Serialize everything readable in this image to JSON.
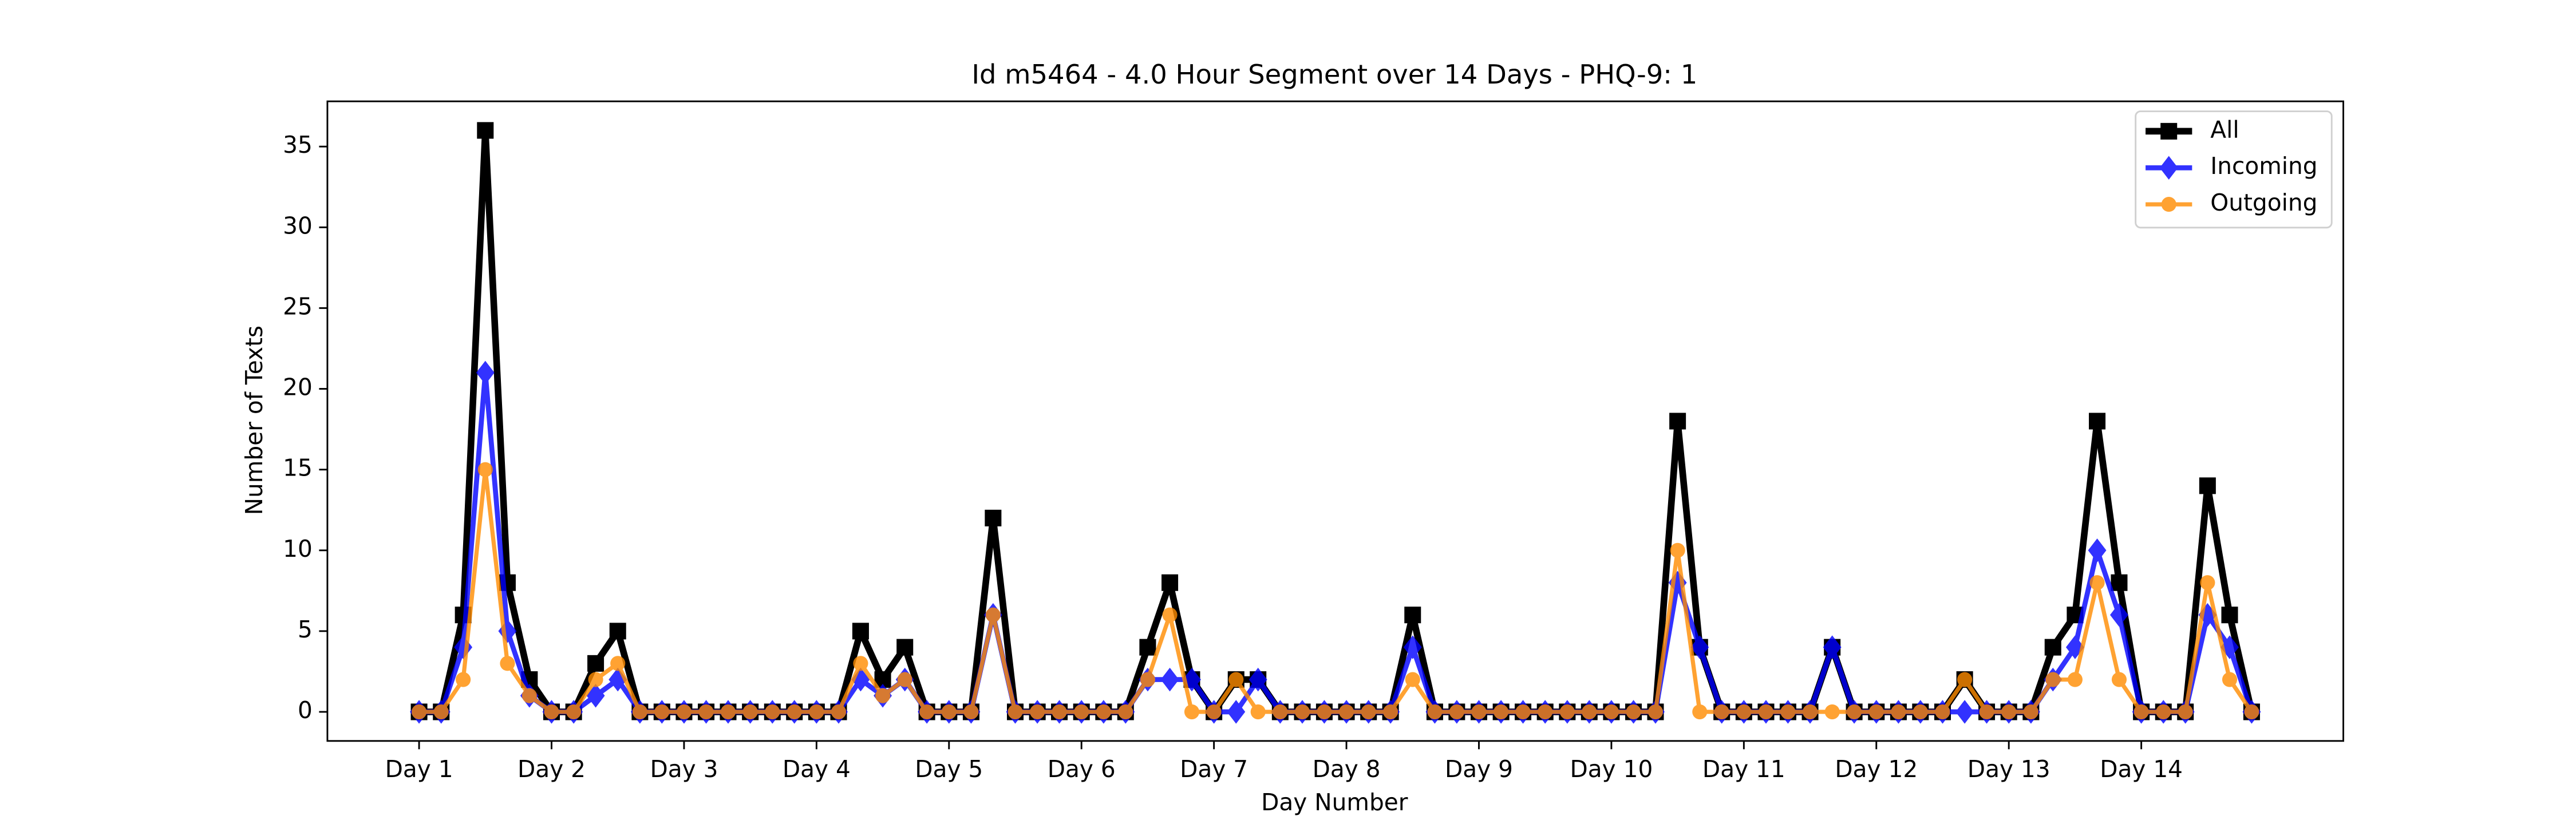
{
  "chart_data": {
    "type": "line",
    "title": "Id m5464 - 4.0 Hour Segment over 14 Days - PHQ-9: 1",
    "xlabel": "Day Number",
    "ylabel": "Number of Texts",
    "x": [
      1,
      1.167,
      1.333,
      1.5,
      1.667,
      1.833,
      2,
      2.167,
      2.333,
      2.5,
      2.667,
      2.833,
      3,
      3.167,
      3.333,
      3.5,
      3.667,
      3.833,
      4,
      4.167,
      4.333,
      4.5,
      4.667,
      4.833,
      5,
      5.167,
      5.333,
      5.5,
      5.667,
      5.833,
      6,
      6.167,
      6.333,
      6.5,
      6.667,
      6.833,
      7,
      7.167,
      7.333,
      7.5,
      7.667,
      7.833,
      8,
      8.167,
      8.333,
      8.5,
      8.667,
      8.833,
      9,
      9.167,
      9.333,
      9.5,
      9.667,
      9.833,
      10,
      10.167,
      10.333,
      10.5,
      10.667,
      10.833,
      11,
      11.167,
      11.333,
      11.5,
      11.667,
      11.833,
      12,
      12.167,
      12.333,
      12.5,
      12.667,
      12.833,
      13,
      13.167,
      13.333,
      13.5,
      13.667,
      13.833,
      14,
      14.167,
      14.333,
      14.5,
      14.667,
      14.833
    ],
    "series": [
      {
        "name": "All",
        "color": "#000000",
        "marker": "square",
        "values": [
          0,
          0,
          6,
          36,
          8,
          2,
          0,
          0,
          3,
          5,
          0,
          0,
          0,
          0,
          0,
          0,
          0,
          0,
          0,
          0,
          5,
          2,
          4,
          0,
          0,
          0,
          12,
          0,
          0,
          0,
          0,
          0,
          0,
          4,
          8,
          2,
          0,
          2,
          2,
          0,
          0,
          0,
          0,
          0,
          0,
          6,
          0,
          0,
          0,
          0,
          0,
          0,
          0,
          0,
          0,
          0,
          0,
          18,
          4,
          0,
          0,
          0,
          0,
          0,
          4,
          0,
          0,
          0,
          0,
          0,
          2,
          0,
          0,
          0,
          4,
          6,
          18,
          8,
          0,
          0,
          0,
          14,
          6,
          0
        ]
      },
      {
        "name": "Incoming",
        "color": "#0000ff",
        "marker": "diamond",
        "values": [
          0,
          0,
          4,
          21,
          5,
          1,
          0,
          0,
          1,
          2,
          0,
          0,
          0,
          0,
          0,
          0,
          0,
          0,
          0,
          0,
          2,
          1,
          2,
          0,
          0,
          0,
          6,
          0,
          0,
          0,
          0,
          0,
          0,
          2,
          2,
          2,
          0,
          0,
          2,
          0,
          0,
          0,
          0,
          0,
          0,
          4,
          0,
          0,
          0,
          0,
          0,
          0,
          0,
          0,
          0,
          0,
          0,
          8,
          4,
          0,
          0,
          0,
          0,
          0,
          4,
          0,
          0,
          0,
          0,
          0,
          0,
          0,
          0,
          0,
          2,
          4,
          10,
          6,
          0,
          0,
          0,
          6,
          4,
          0
        ]
      },
      {
        "name": "Outgoing",
        "color": "#ff8c00",
        "marker": "circle",
        "values": [
          0,
          0,
          2,
          15,
          3,
          1,
          0,
          0,
          2,
          3,
          0,
          0,
          0,
          0,
          0,
          0,
          0,
          0,
          0,
          0,
          3,
          1,
          2,
          0,
          0,
          0,
          6,
          0,
          0,
          0,
          0,
          0,
          0,
          2,
          6,
          0,
          0,
          2,
          0,
          0,
          0,
          0,
          0,
          0,
          0,
          2,
          0,
          0,
          0,
          0,
          0,
          0,
          0,
          0,
          0,
          0,
          0,
          10,
          0,
          0,
          0,
          0,
          0,
          0,
          0,
          0,
          0,
          0,
          0,
          0,
          2,
          0,
          0,
          0,
          2,
          2,
          8,
          2,
          0,
          0,
          0,
          8,
          2,
          0
        ]
      }
    ],
    "xlim": [
      0.308,
      15.525
    ],
    "xticks": [
      {
        "value": 1,
        "label": "Day 1"
      },
      {
        "value": 2,
        "label": "Day 2"
      },
      {
        "value": 3,
        "label": "Day 3"
      },
      {
        "value": 4,
        "label": "Day 4"
      },
      {
        "value": 5,
        "label": "Day 5"
      },
      {
        "value": 6,
        "label": "Day 6"
      },
      {
        "value": 7,
        "label": "Day 7"
      },
      {
        "value": 8,
        "label": "Day 8"
      },
      {
        "value": 9,
        "label": "Day 9"
      },
      {
        "value": 10,
        "label": "Day 10"
      },
      {
        "value": 11,
        "label": "Day 11"
      },
      {
        "value": 12,
        "label": "Day 12"
      },
      {
        "value": 13,
        "label": "Day 13"
      },
      {
        "value": 14,
        "label": "Day 14"
      }
    ],
    "ylim": [
      -1.8,
      37.8
    ],
    "yticks": [
      0,
      5,
      10,
      15,
      20,
      25,
      30,
      35
    ],
    "grid": false,
    "legend": "upper right"
  }
}
